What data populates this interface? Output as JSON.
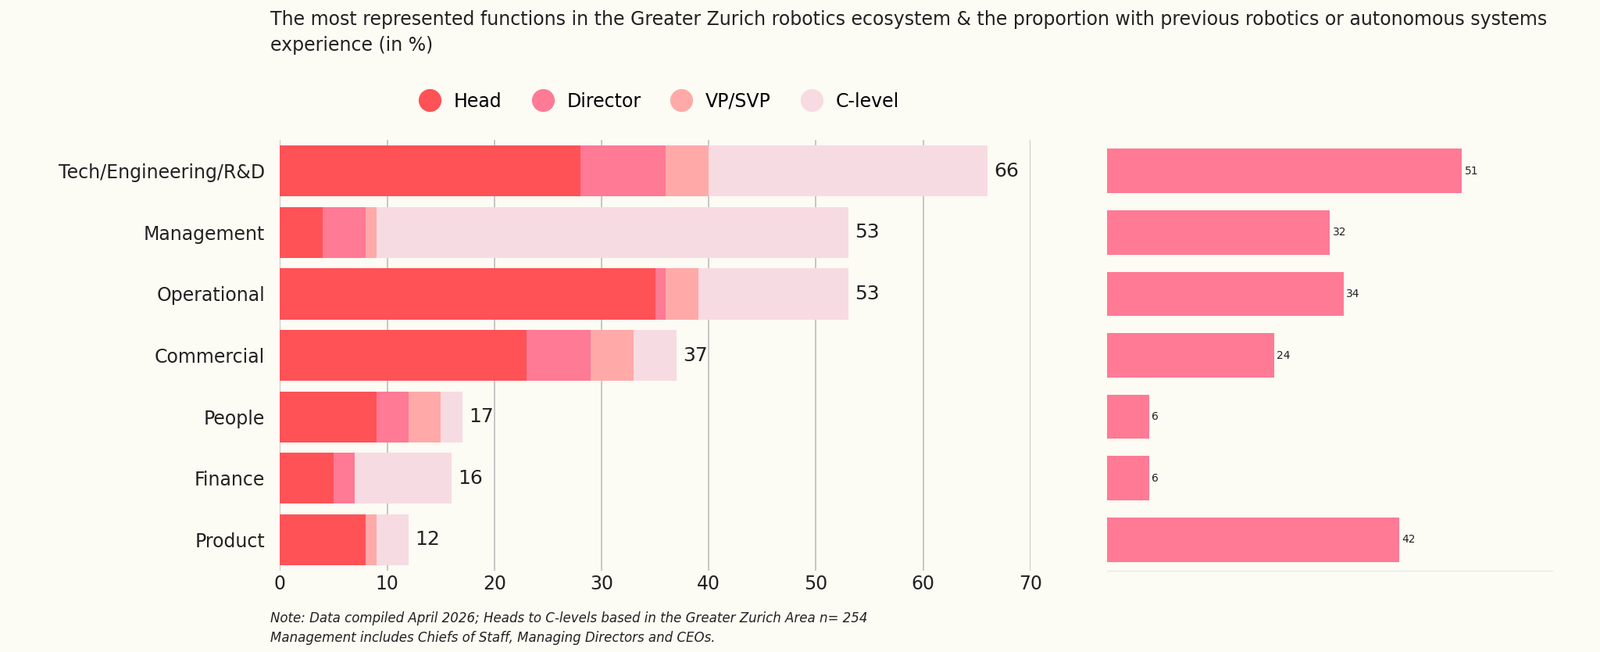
{
  "title": "The most represented functions in the Greater Zurich robotics ecosystem & the proportion with previous robotics or autonomous systems experience (in %)",
  "notes": [
    "Note: Data compiled April 2026; Heads to C-levels based in the Greater Zurich Area n= 254",
    "Management includes Chiefs of Staff, Managing Directors and CEOs."
  ],
  "chart_data": [
    {
      "type": "bar",
      "orientation": "horizontal",
      "stacked": true,
      "grid": true,
      "legend": "top",
      "categories": [
        "Tech/Engineering/R&D",
        "Management",
        "Operational",
        "Commercial",
        "People",
        "Finance",
        "Product"
      ],
      "series": [
        {
          "name": "Head",
          "color": "#ff5257",
          "values": [
            28,
            4,
            35,
            23,
            9,
            5,
            8
          ]
        },
        {
          "name": "Director",
          "color": "#ff7a95",
          "values": [
            8,
            4,
            1,
            6,
            3,
            2,
            0
          ]
        },
        {
          "name": "VP/SVP",
          "color": "#ffaaa8",
          "values": [
            4,
            1,
            3,
            4,
            3,
            0,
            1
          ]
        },
        {
          "name": "C-level",
          "color": "#f7dbe3",
          "values": [
            26,
            44,
            14,
            4,
            2,
            9,
            3
          ]
        }
      ],
      "totals": [
        66,
        53,
        53,
        37,
        17,
        16,
        12
      ],
      "xlim": [
        0,
        70
      ],
      "xticks": [
        0,
        10,
        20,
        30,
        40,
        50,
        60,
        70
      ]
    },
    {
      "type": "bar",
      "orientation": "horizontal",
      "data_labels": true,
      "tick_labels": false,
      "categories": [
        null,
        null,
        null,
        null,
        null,
        null,
        null
      ],
      "values": [
        51,
        32,
        34,
        24,
        6,
        6,
        42
      ],
      "color": "#ff7a95",
      "xlim": [
        0,
        64
      ],
      "xticks": []
    }
  ]
}
